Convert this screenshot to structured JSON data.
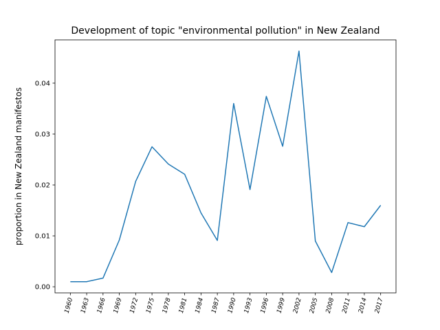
{
  "chart_data": {
    "type": "line",
    "title": "Development of topic \"environmental pollution\" in New Zealand",
    "xlabel": "",
    "ylabel": "proportion in New Zealand manifestos",
    "categories": [
      "1960",
      "1963",
      "1966",
      "1969",
      "1972",
      "1975",
      "1978",
      "1981",
      "1984",
      "1987",
      "1990",
      "1993",
      "1996",
      "1999",
      "2002",
      "2005",
      "2008",
      "2011",
      "2014",
      "2017"
    ],
    "series": [
      {
        "values": [
          0.001,
          0.001,
          0.0017,
          0.0092,
          0.0207,
          0.0275,
          0.0241,
          0.0221,
          0.0145,
          0.0091,
          0.036,
          0.0191,
          0.0374,
          0.0276,
          0.0463,
          0.009,
          0.0028,
          0.0126,
          0.0118,
          0.016
        ],
        "color": "#1f77b4"
      }
    ],
    "yticks": [
      "0.00",
      "0.01",
      "0.02",
      "0.03",
      "0.04"
    ],
    "ylim": [
      -0.0012,
      0.0485
    ],
    "grid": false
  }
}
